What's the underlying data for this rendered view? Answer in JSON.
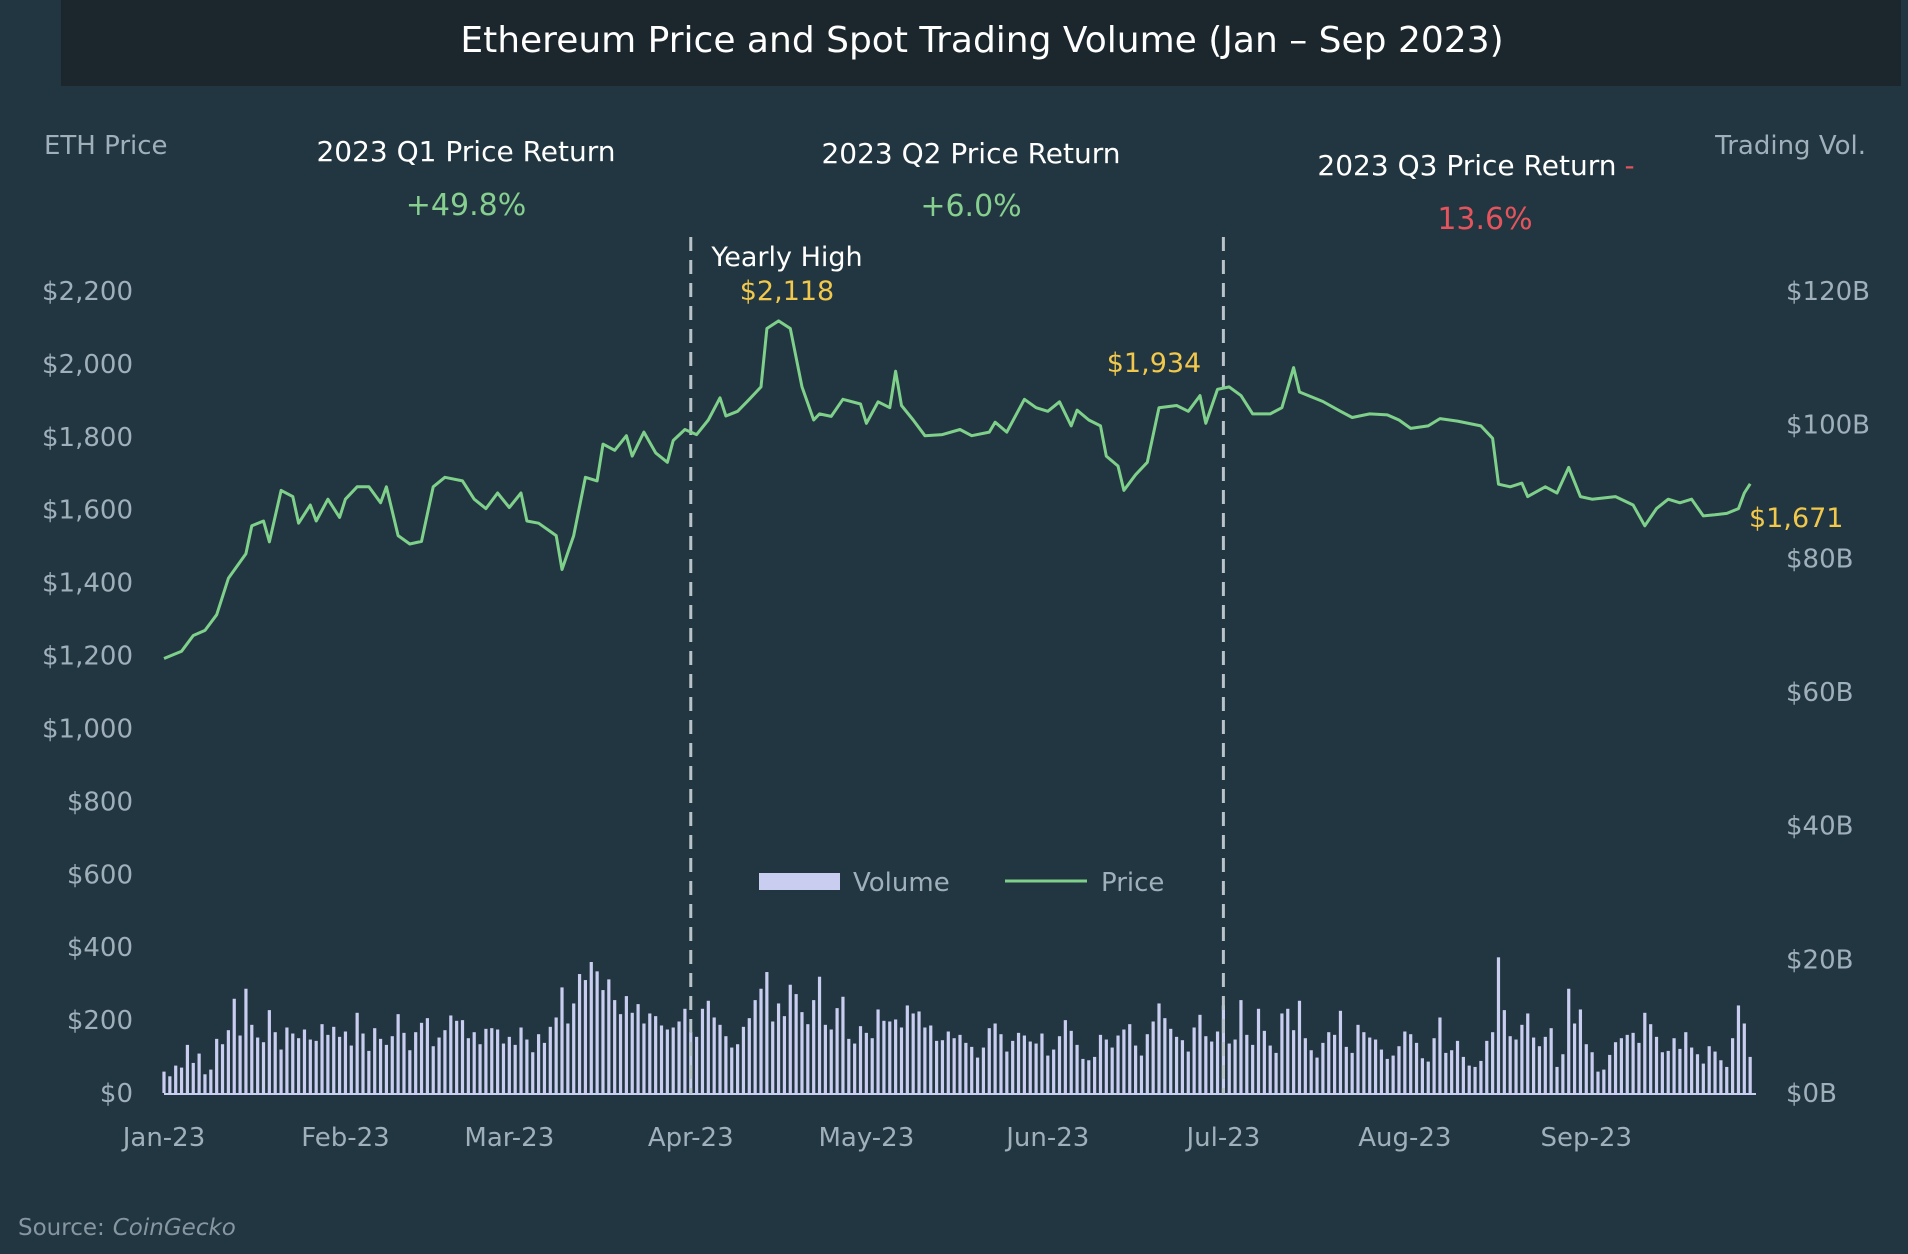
{
  "chart_data": {
    "type": "bar+line",
    "title": "Ethereum Price and Spot Trading Volume (Jan – Sep 2023)",
    "y_left_label": "ETH Price",
    "y_right_label": "Trading Vol.",
    "y_left_ticks": [
      "$0",
      "$200",
      "$400",
      "$600",
      "$800",
      "$1,000",
      "$1,200",
      "$1,400",
      "$1,600",
      "$1,800",
      "$2,000",
      "$2,200"
    ],
    "y_left_range": [
      0,
      2200
    ],
    "y_right_ticks": [
      "$0B",
      "$20B",
      "$40B",
      "$60B",
      "$80B",
      "$100B",
      "$120B"
    ],
    "y_right_range": [
      0,
      120
    ],
    "x_ticks": [
      {
        "label": "Jan-23",
        "date": "2023-01-01"
      },
      {
        "label": "Feb-23",
        "date": "2023-02-01"
      },
      {
        "label": "Mar-23",
        "date": "2023-03-01"
      },
      {
        "label": "Apr-23",
        "date": "2023-04-01"
      },
      {
        "label": "May-23",
        "date": "2023-05-01"
      },
      {
        "label": "Jun-23",
        "date": "2023-06-01"
      },
      {
        "label": "Jul-23",
        "date": "2023-07-01"
      },
      {
        "label": "Aug-23",
        "date": "2023-08-01"
      },
      {
        "label": "Sep-23",
        "date": "2023-09-01"
      }
    ],
    "legend": {
      "position": "center-bottom",
      "items": [
        {
          "name": "Volume",
          "color": "#c9cdf0"
        },
        {
          "name": "Price",
          "color": "#7fd08a"
        }
      ]
    },
    "grid": false,
    "quarter_dividers": [
      "2023-04-01",
      "2023-07-01"
    ],
    "quarter_returns": [
      {
        "label": "2023 Q1 Price Return",
        "value": "+49.8%",
        "sign": "positive"
      },
      {
        "label": "2023 Q2 Price Return",
        "value": "+6.0%",
        "sign": "positive"
      },
      {
        "label": "2023 Q3 Price Return",
        "dash": "-",
        "value": "13.6%",
        "sign": "negative"
      }
    ],
    "annotations": {
      "yearly_high_label": "Yearly High",
      "yearly_high_value": "$2,118",
      "q2_end_value": "$1,934",
      "last_value": "$1,671"
    },
    "series": [
      {
        "name": "Price",
        "type": "line",
        "axis": "left",
        "color": "#7fd08a",
        "points": [
          [
            "2023-01-01",
            1192
          ],
          [
            "2023-01-04",
            1212
          ],
          [
            "2023-01-06",
            1255
          ],
          [
            "2023-01-08",
            1269
          ],
          [
            "2023-01-10",
            1312
          ],
          [
            "2023-01-12",
            1412
          ],
          [
            "2023-01-15",
            1479
          ],
          [
            "2023-01-16",
            1556
          ],
          [
            "2023-01-18",
            1569
          ],
          [
            "2023-01-19",
            1512
          ],
          [
            "2023-01-21",
            1653
          ],
          [
            "2023-01-23",
            1636
          ],
          [
            "2023-01-24",
            1563
          ],
          [
            "2023-01-26",
            1613
          ],
          [
            "2023-01-27",
            1569
          ],
          [
            "2023-01-29",
            1629
          ],
          [
            "2023-01-31",
            1579
          ],
          [
            "2023-02-01",
            1629
          ],
          [
            "2023-02-03",
            1663
          ],
          [
            "2023-02-05",
            1663
          ],
          [
            "2023-02-07",
            1619
          ],
          [
            "2023-02-08",
            1663
          ],
          [
            "2023-02-10",
            1529
          ],
          [
            "2023-02-12",
            1506
          ],
          [
            "2023-02-14",
            1513
          ],
          [
            "2023-02-16",
            1663
          ],
          [
            "2023-02-18",
            1689
          ],
          [
            "2023-02-21",
            1679
          ],
          [
            "2023-02-23",
            1629
          ],
          [
            "2023-02-25",
            1603
          ],
          [
            "2023-02-27",
            1646
          ],
          [
            "2023-03-01",
            1606
          ],
          [
            "2023-03-03",
            1646
          ],
          [
            "2023-03-04",
            1569
          ],
          [
            "2023-03-06",
            1563
          ],
          [
            "2023-03-09",
            1529
          ],
          [
            "2023-03-10",
            1436
          ],
          [
            "2023-03-12",
            1529
          ],
          [
            "2023-03-14",
            1689
          ],
          [
            "2023-03-16",
            1679
          ],
          [
            "2023-03-17",
            1780
          ],
          [
            "2023-03-19",
            1763
          ],
          [
            "2023-03-21",
            1803
          ],
          [
            "2023-03-22",
            1747
          ],
          [
            "2023-03-24",
            1813
          ],
          [
            "2023-03-26",
            1756
          ],
          [
            "2023-03-28",
            1730
          ],
          [
            "2023-03-29",
            1790
          ],
          [
            "2023-03-31",
            1820
          ],
          [
            "2023-04-02",
            1806
          ],
          [
            "2023-04-04",
            1846
          ],
          [
            "2023-04-06",
            1907
          ],
          [
            "2023-04-07",
            1857
          ],
          [
            "2023-04-09",
            1870
          ],
          [
            "2023-04-11",
            1903
          ],
          [
            "2023-04-13",
            1937
          ],
          [
            "2023-04-14",
            2097
          ],
          [
            "2023-04-16",
            2118
          ],
          [
            "2023-04-18",
            2097
          ],
          [
            "2023-04-20",
            1937
          ],
          [
            "2023-04-22",
            1846
          ],
          [
            "2023-04-23",
            1863
          ],
          [
            "2023-04-25",
            1856
          ],
          [
            "2023-04-27",
            1903
          ],
          [
            "2023-04-30",
            1890
          ],
          [
            "2023-05-01",
            1837
          ],
          [
            "2023-05-03",
            1896
          ],
          [
            "2023-05-05",
            1880
          ],
          [
            "2023-05-06",
            1980
          ],
          [
            "2023-05-07",
            1886
          ],
          [
            "2023-05-09",
            1846
          ],
          [
            "2023-05-11",
            1803
          ],
          [
            "2023-05-14",
            1806
          ],
          [
            "2023-05-17",
            1820
          ],
          [
            "2023-05-19",
            1803
          ],
          [
            "2023-05-22",
            1813
          ],
          [
            "2023-05-23",
            1840
          ],
          [
            "2023-05-25",
            1813
          ],
          [
            "2023-05-28",
            1903
          ],
          [
            "2023-05-30",
            1880
          ],
          [
            "2023-06-01",
            1870
          ],
          [
            "2023-06-03",
            1896
          ],
          [
            "2023-06-05",
            1830
          ],
          [
            "2023-06-06",
            1873
          ],
          [
            "2023-06-08",
            1846
          ],
          [
            "2023-06-10",
            1830
          ],
          [
            "2023-06-11",
            1747
          ],
          [
            "2023-06-13",
            1720
          ],
          [
            "2023-06-14",
            1653
          ],
          [
            "2023-06-16",
            1696
          ],
          [
            "2023-06-18",
            1730
          ],
          [
            "2023-06-20",
            1880
          ],
          [
            "2023-06-23",
            1886
          ],
          [
            "2023-06-25",
            1870
          ],
          [
            "2023-06-27",
            1913
          ],
          [
            "2023-06-28",
            1837
          ],
          [
            "2023-06-30",
            1930
          ],
          [
            "2023-07-02",
            1937
          ],
          [
            "2023-07-04",
            1913
          ],
          [
            "2023-07-06",
            1863
          ],
          [
            "2023-07-09",
            1863
          ],
          [
            "2023-07-11",
            1880
          ],
          [
            "2023-07-13",
            1990
          ],
          [
            "2023-07-14",
            1923
          ],
          [
            "2023-07-18",
            1897
          ],
          [
            "2023-07-21",
            1870
          ],
          [
            "2023-07-23",
            1853
          ],
          [
            "2023-07-26",
            1863
          ],
          [
            "2023-07-29",
            1860
          ],
          [
            "2023-07-31",
            1846
          ],
          [
            "2023-08-02",
            1823
          ],
          [
            "2023-08-05",
            1830
          ],
          [
            "2023-08-07",
            1850
          ],
          [
            "2023-08-10",
            1843
          ],
          [
            "2023-08-14",
            1830
          ],
          [
            "2023-08-16",
            1796
          ],
          [
            "2023-08-17",
            1670
          ],
          [
            "2023-08-19",
            1663
          ],
          [
            "2023-08-21",
            1673
          ],
          [
            "2023-08-22",
            1636
          ],
          [
            "2023-08-25",
            1663
          ],
          [
            "2023-08-27",
            1646
          ],
          [
            "2023-08-29",
            1716
          ],
          [
            "2023-08-31",
            1636
          ],
          [
            "2023-09-02",
            1629
          ],
          [
            "2023-09-06",
            1636
          ],
          [
            "2023-09-09",
            1613
          ],
          [
            "2023-09-11",
            1556
          ],
          [
            "2023-09-13",
            1603
          ],
          [
            "2023-09-15",
            1629
          ],
          [
            "2023-09-17",
            1619
          ],
          [
            "2023-09-19",
            1629
          ],
          [
            "2023-09-21",
            1583
          ],
          [
            "2023-09-23",
            1586
          ],
          [
            "2023-09-25",
            1590
          ],
          [
            "2023-09-27",
            1603
          ],
          [
            "2023-09-28",
            1646
          ],
          [
            "2023-09-29",
            1671
          ]
        ]
      },
      {
        "name": "Volume",
        "type": "bar",
        "axis": "right",
        "unit": "B",
        "color": "#c9cdf0",
        "daily_by_month": {
          "Jan-23": [
            3.2,
            2.5,
            4.1,
            3.8,
            7.2,
            4.5,
            5.9,
            2.8,
            3.5,
            8.1,
            7.3,
            9.4,
            14.1,
            8.6,
            15.6,
            10.2,
            8.3,
            7.6,
            12.4,
            9.1,
            6.5,
            9.8,
            8.9,
            8.2,
            9.5,
            8.0,
            7.8,
            10.3,
            8.7,
            9.9,
            8.4
          ],
          "Feb-23": [
            9.2,
            7.1,
            12.0,
            8.9,
            6.3,
            9.7,
            8.1,
            7.2,
            8.5,
            11.8,
            9.0,
            6.4,
            9.1,
            10.5,
            11.2,
            7.0,
            8.3,
            9.4,
            11.6,
            10.8,
            10.9,
            8.2,
            9.1,
            7.3,
            9.6,
            9.7,
            9.5,
            7.4
          ],
          "Mar-23": [
            8.4,
            7.2,
            9.8,
            8.0,
            6.1,
            8.8,
            7.5,
            9.9,
            11.3,
            15.8,
            10.4,
            13.4,
            17.8,
            16.9,
            19.6,
            18.2,
            15.4,
            17.0,
            13.9,
            11.8,
            14.5,
            12.0,
            13.3,
            10.4,
            11.9,
            11.5,
            10.1,
            9.5,
            9.8,
            10.7,
            12.6
          ],
          "Apr-23": [
            9.1,
            8.4,
            12.6,
            13.8,
            11.3,
            10.2,
            8.5,
            6.8,
            7.3,
            9.9,
            11.2,
            13.9,
            15.6,
            18.1,
            10.7,
            13.4,
            11.5,
            16.2,
            14.8,
            12.1,
            10.3,
            13.9,
            17.4,
            10.2,
            9.5,
            12.7,
            14.4,
            8.1,
            7.4,
            10.0
          ],
          "May-23": [
            9.0,
            8.2,
            12.5,
            10.8,
            10.7,
            11.0,
            9.8,
            13.1,
            11.9,
            12.2,
            9.8,
            10.1,
            7.8,
            7.9,
            9.2,
            8.2,
            8.7,
            7.5,
            6.9,
            5.3,
            6.8,
            9.7,
            10.4,
            8.8,
            6.2,
            7.8,
            9.0,
            8.6,
            7.7,
            7.4,
            8.9
          ],
          "Jun-23": [
            5.6,
            6.5,
            8.5,
            10.9,
            9.3,
            7.2,
            5.1,
            4.9,
            5.4,
            8.7,
            8.0,
            6.8,
            8.6,
            9.5,
            10.3,
            7.1,
            5.6,
            8.8,
            10.7,
            13.4,
            11.2,
            9.6,
            8.4,
            7.9,
            6.2,
            9.8,
            11.7,
            8.5,
            7.7,
            9.2
          ],
          "Jul-23": [
            13.1,
            7.4,
            8.0,
            13.9,
            8.7,
            7.2,
            12.6,
            9.3,
            7.1,
            6.0,
            11.9,
            12.6,
            9.4,
            13.8,
            8.2,
            6.4,
            5.3,
            7.5,
            9.1,
            8.7,
            12.3,
            6.9,
            6.0,
            10.2,
            9.1,
            8.3,
            8.0,
            6.5,
            5.1,
            5.6,
            7.0
          ],
          "Aug-23": [
            9.2,
            8.8,
            7.5,
            5.2,
            4.7,
            8.2,
            11.3,
            6.0,
            6.4,
            7.8,
            5.4,
            4.1,
            3.9,
            4.8,
            7.8,
            9.1,
            20.3,
            12.4,
            8.5,
            8.0,
            10.2,
            11.9,
            8.3,
            7.0,
            8.4,
            9.7,
            3.9,
            5.8,
            15.6,
            10.4,
            12.5
          ],
          "Sep-23": [
            7.3,
            6.1,
            3.2,
            3.5,
            5.7,
            7.6,
            8.2,
            8.7,
            9.0,
            7.5,
            12.0,
            10.3,
            8.4,
            6.1,
            6.3,
            8.2,
            6.6,
            9.1,
            6.8,
            5.8,
            4.4,
            7.0,
            6.2,
            4.9,
            3.9,
            8.2,
            13.1,
            10.4,
            5.4
          ]
        }
      }
    ],
    "source_label": "Source:",
    "source_name": "CoinGecko"
  },
  "colors": {
    "background": "#223641",
    "title_bar": "#1b262d",
    "price_line": "#7fd08a",
    "volume_bar": "#c9cdf0",
    "positive": "#86cf8f",
    "negative": "#e5545c",
    "highlight": "#f1c84b",
    "axis_text": "#9fb0ba"
  }
}
